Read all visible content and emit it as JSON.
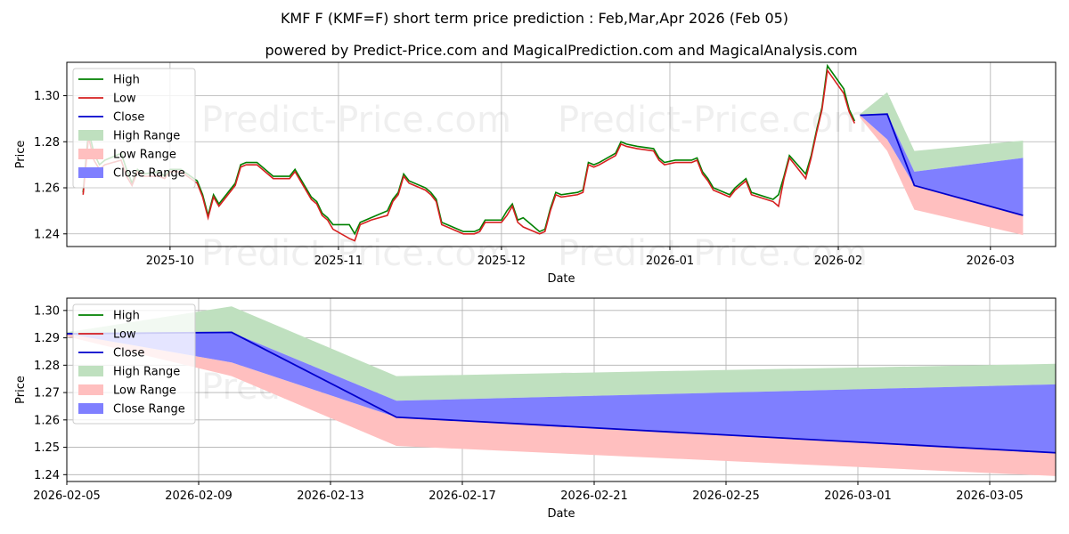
{
  "chart_data": {
    "type": "line",
    "title": "KMF F (KMF=F) short term price prediction : Feb,Mar,Apr 2026 (Feb 05)",
    "subtitle": "powered by Predict-Price.com and MagicalPrediction.com and MagicalAnalysis.com",
    "watermark": "Predict-Price.com",
    "legend": {
      "placement": "top-left",
      "entries": [
        {
          "label": "High",
          "kind": "line",
          "color": "#008000"
        },
        {
          "label": "Low",
          "kind": "line",
          "color": "#d62020"
        },
        {
          "label": "Close",
          "kind": "line",
          "color": "#0000cc"
        },
        {
          "label": "High Range",
          "kind": "patch",
          "color": "#bfe0bf"
        },
        {
          "label": "Low Range",
          "kind": "patch",
          "color": "#ffbfbf"
        },
        {
          "label": "Close Range",
          "kind": "patch",
          "color": "#7f7fff"
        }
      ]
    },
    "colors": {
      "high": "#008000",
      "low": "#d62020",
      "close": "#0000cc",
      "high_range": "#bfe0bf",
      "low_range": "#ffbfbf",
      "close_range": "#7f7fff",
      "grid": "#b0b0b0"
    },
    "panels": [
      {
        "name": "overview",
        "xlabel": "Date",
        "ylabel": "Price",
        "xlim": [
          "2025-09-12",
          "2026-03-13"
        ],
        "ylim": [
          1.2345,
          1.3145
        ],
        "xticks": [
          "2025-10-01",
          "2025-11-01",
          "2025-12-01",
          "2026-01-01",
          "2026-02-01",
          "2026-03-01"
        ],
        "xtick_labels": [
          "2025-10",
          "2025-11",
          "2025-12",
          "2026-01",
          "2026-02",
          "2026-03"
        ],
        "yticks": [
          1.24,
          1.26,
          1.28,
          1.3
        ],
        "ytick_labels": [
          "1.24",
          "1.26",
          "1.28",
          "1.30"
        ],
        "history": {
          "dates": [
            "2025-09-15",
            "2025-09-16",
            "2025-09-17",
            "2025-09-18",
            "2025-09-19",
            "2025-09-22",
            "2025-09-23",
            "2025-09-24",
            "2025-09-25",
            "2025-09-26",
            "2025-09-29",
            "2025-09-30",
            "2025-10-01",
            "2025-10-02",
            "2025-10-03",
            "2025-10-06",
            "2025-10-07",
            "2025-10-08",
            "2025-10-09",
            "2025-10-10",
            "2025-10-13",
            "2025-10-14",
            "2025-10-15",
            "2025-10-16",
            "2025-10-17",
            "2025-10-20",
            "2025-10-21",
            "2025-10-22",
            "2025-10-23",
            "2025-10-24",
            "2025-10-27",
            "2025-10-28",
            "2025-10-29",
            "2025-10-30",
            "2025-10-31",
            "2025-11-03",
            "2025-11-04",
            "2025-11-05",
            "2025-11-06",
            "2025-11-07",
            "2025-11-10",
            "2025-11-11",
            "2025-11-12",
            "2025-11-13",
            "2025-11-14",
            "2025-11-17",
            "2025-11-18",
            "2025-11-19",
            "2025-11-20",
            "2025-11-21",
            "2025-11-24",
            "2025-11-25",
            "2025-11-26",
            "2025-11-27",
            "2025-11-28",
            "2025-12-01",
            "2025-12-02",
            "2025-12-03",
            "2025-12-04",
            "2025-12-05",
            "2025-12-08",
            "2025-12-09",
            "2025-12-10",
            "2025-12-11",
            "2025-12-12",
            "2025-12-15",
            "2025-12-16",
            "2025-12-17",
            "2025-12-18",
            "2025-12-19",
            "2025-12-22",
            "2025-12-23",
            "2025-12-24",
            "2025-12-26",
            "2025-12-29",
            "2025-12-30",
            "2025-12-31",
            "2026-01-02",
            "2026-01-05",
            "2026-01-06",
            "2026-01-07",
            "2026-01-08",
            "2026-01-09",
            "2026-01-12",
            "2026-01-13",
            "2026-01-14",
            "2026-01-15",
            "2026-01-16",
            "2026-01-20",
            "2026-01-21",
            "2026-01-22",
            "2026-01-23",
            "2026-01-26",
            "2026-01-27",
            "2026-01-28",
            "2026-01-29",
            "2026-01-30",
            "2026-02-02",
            "2026-02-03",
            "2026-02-04"
          ],
          "high": [
            1.258,
            1.285,
            1.275,
            1.27,
            1.272,
            1.275,
            1.268,
            1.262,
            1.268,
            1.266,
            1.267,
            1.265,
            1.268,
            1.268,
            1.268,
            1.263,
            1.257,
            1.248,
            1.257,
            1.253,
            1.262,
            1.27,
            1.271,
            1.271,
            1.271,
            1.265,
            1.265,
            1.265,
            1.265,
            1.268,
            1.256,
            1.254,
            1.249,
            1.247,
            1.244,
            1.244,
            1.24,
            1.245,
            1.246,
            1.247,
            1.25,
            1.255,
            1.258,
            1.266,
            1.263,
            1.26,
            1.258,
            1.255,
            1.245,
            1.244,
            1.241,
            1.241,
            1.241,
            1.242,
            1.246,
            1.246,
            1.25,
            1.253,
            1.246,
            1.247,
            1.241,
            1.242,
            1.251,
            1.258,
            1.257,
            1.258,
            1.259,
            1.271,
            1.27,
            1.271,
            1.275,
            1.28,
            1.279,
            1.278,
            1.277,
            1.273,
            1.271,
            1.272,
            1.272,
            1.273,
            1.267,
            1.264,
            1.26,
            1.257,
            1.26,
            1.262,
            1.264,
            1.258,
            1.255,
            1.257,
            1.265,
            1.274,
            1.266,
            1.274,
            1.285,
            1.295,
            1.313,
            1.303,
            1.294,
            1.289
          ],
          "low": [
            1.257,
            1.282,
            1.272,
            1.268,
            1.27,
            1.272,
            1.265,
            1.261,
            1.267,
            1.265,
            1.265,
            1.264,
            1.267,
            1.267,
            1.267,
            1.262,
            1.256,
            1.247,
            1.256,
            1.252,
            1.261,
            1.269,
            1.27,
            1.27,
            1.27,
            1.264,
            1.264,
            1.264,
            1.264,
            1.267,
            1.255,
            1.253,
            1.248,
            1.246,
            1.242,
            1.238,
            1.237,
            1.244,
            1.245,
            1.246,
            1.248,
            1.254,
            1.257,
            1.265,
            1.262,
            1.259,
            1.257,
            1.254,
            1.244,
            1.243,
            1.24,
            1.24,
            1.24,
            1.241,
            1.245,
            1.245,
            1.248,
            1.252,
            1.245,
            1.243,
            1.24,
            1.241,
            1.25,
            1.257,
            1.256,
            1.257,
            1.258,
            1.27,
            1.269,
            1.27,
            1.274,
            1.279,
            1.278,
            1.277,
            1.276,
            1.272,
            1.27,
            1.271,
            1.271,
            1.272,
            1.266,
            1.263,
            1.259,
            1.256,
            1.259,
            1.261,
            1.263,
            1.257,
            1.254,
            1.252,
            1.264,
            1.273,
            1.264,
            1.273,
            1.284,
            1.294,
            1.311,
            1.301,
            1.293,
            1.288
          ]
        },
        "forecast": {
          "dates": [
            "2026-02-05",
            "2026-02-10",
            "2026-02-15",
            "2026-03-07"
          ],
          "close": [
            1.2915,
            1.292,
            1.261,
            1.248
          ],
          "high_range": {
            "upper": [
              1.292,
              1.3015,
              1.276,
              1.2805
            ],
            "lower": [
              1.2915,
              1.292,
              1.267,
              1.273
            ]
          },
          "close_range": {
            "upper": [
              1.2915,
              1.292,
              1.267,
              1.273
            ],
            "lower": [
              1.2915,
              1.281,
              1.261,
              1.248
            ]
          },
          "low_range": {
            "upper": [
              1.2915,
              1.281,
              1.261,
              1.248
            ],
            "lower": [
              1.2905,
              1.276,
              1.2505,
              1.2395
            ]
          }
        }
      },
      {
        "name": "forecast-detail",
        "xlabel": "Date",
        "ylabel": "Price",
        "xlim": [
          "2026-02-05",
          "2026-03-07"
        ],
        "ylim": [
          1.2375,
          1.3045
        ],
        "xticks": [
          "2026-02-05",
          "2026-02-09",
          "2026-02-13",
          "2026-02-17",
          "2026-02-21",
          "2026-02-25",
          "2026-03-01",
          "2026-03-05"
        ],
        "xtick_labels": [
          "2026-02-05",
          "2026-02-09",
          "2026-02-13",
          "2026-02-17",
          "2026-02-21",
          "2026-02-25",
          "2026-03-01",
          "2026-03-05"
        ],
        "yticks": [
          1.24,
          1.25,
          1.26,
          1.27,
          1.28,
          1.29,
          1.3
        ],
        "ytick_labels": [
          "1.24",
          "1.25",
          "1.26",
          "1.27",
          "1.28",
          "1.29",
          "1.30"
        ],
        "forecast": {
          "dates": [
            "2026-02-05",
            "2026-02-10",
            "2026-02-15",
            "2026-03-07"
          ],
          "close": [
            1.2915,
            1.292,
            1.261,
            1.248
          ],
          "high_range": {
            "upper": [
              1.292,
              1.3015,
              1.276,
              1.2805
            ],
            "lower": [
              1.2915,
              1.292,
              1.267,
              1.273
            ]
          },
          "close_range": {
            "upper": [
              1.2915,
              1.292,
              1.267,
              1.273
            ],
            "lower": [
              1.2915,
              1.281,
              1.261,
              1.248
            ]
          },
          "low_range": {
            "upper": [
              1.2915,
              1.281,
              1.261,
              1.248
            ],
            "lower": [
              1.2905,
              1.276,
              1.2505,
              1.2395
            ]
          }
        }
      }
    ]
  }
}
